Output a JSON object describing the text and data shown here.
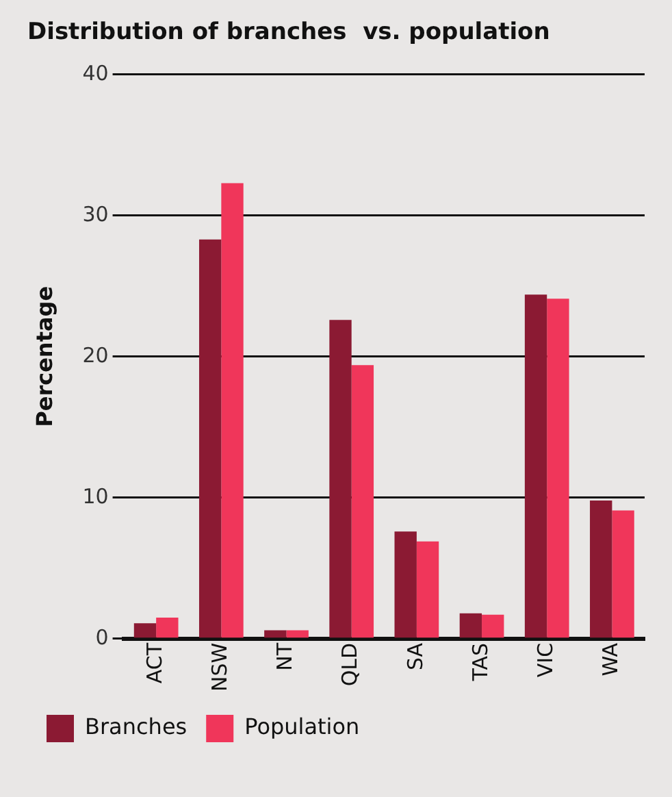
{
  "chart_data": {
    "type": "bar",
    "title": "Distribution of branches  vs. population",
    "ylabel": "Percentage",
    "categories": [
      "ACT",
      "NSW",
      "NT",
      "QLD",
      "SA",
      "TAS",
      "VIC",
      "WA"
    ],
    "series": [
      {
        "name": "Branches",
        "color": "#8b1a33",
        "values": [
          1.1,
          28.3,
          0.6,
          22.6,
          7.6,
          1.8,
          24.4,
          9.8
        ]
      },
      {
        "name": "Population",
        "color": "#f0365a",
        "values": [
          1.5,
          32.3,
          0.6,
          19.4,
          6.9,
          1.7,
          24.1,
          9.1
        ]
      }
    ],
    "ylim": [
      0,
      40
    ],
    "yticks": [
      0,
      10,
      20,
      30,
      40
    ],
    "grid": "y",
    "legend": "bottom left"
  }
}
